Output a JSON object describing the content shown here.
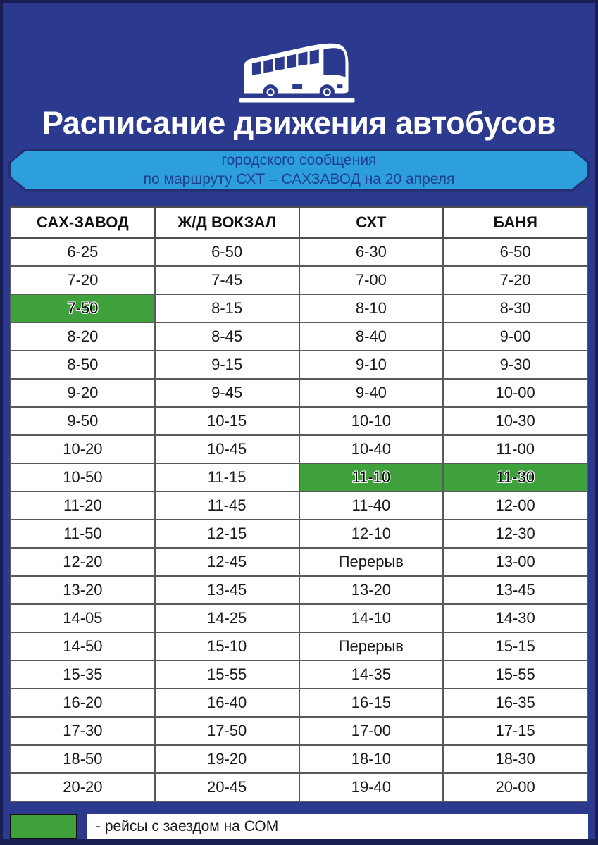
{
  "page": {
    "title": "Расписание движения автобусов",
    "subtitle_line1": "городского сообщения",
    "subtitle_line2": "по маршруту СХТ – САХЗАВОД на 20 апреля"
  },
  "colors": {
    "frame": "#191f55",
    "background": "#2b3a8e",
    "banner": "#2c9fdc",
    "banner_outline": "#23306f",
    "banner_text": "#1d3f8e",
    "highlight_green": "#3ea13c"
  },
  "icons": {
    "bus": "bus-icon"
  },
  "table": {
    "columns": [
      "САХ-ЗАВОД",
      "Ж/Д ВОКЗАЛ",
      "СХТ",
      "БАНЯ"
    ],
    "rows": [
      {
        "cells": [
          "6-25",
          "6-50",
          "6-30",
          "6-50"
        ],
        "highlight": []
      },
      {
        "cells": [
          "7-20",
          "7-45",
          "7-00",
          "7-20"
        ],
        "highlight": []
      },
      {
        "cells": [
          "7-50",
          "8-15",
          "8-10",
          "8-30"
        ],
        "highlight": [
          0
        ]
      },
      {
        "cells": [
          "8-20",
          "8-45",
          "8-40",
          "9-00"
        ],
        "highlight": []
      },
      {
        "cells": [
          "8-50",
          "9-15",
          "9-10",
          "9-30"
        ],
        "highlight": []
      },
      {
        "cells": [
          "9-20",
          "9-45",
          "9-40",
          "10-00"
        ],
        "highlight": []
      },
      {
        "cells": [
          "9-50",
          "10-15",
          "10-10",
          "10-30"
        ],
        "highlight": []
      },
      {
        "cells": [
          "10-20",
          "10-45",
          "10-40",
          "11-00"
        ],
        "highlight": []
      },
      {
        "cells": [
          "10-50",
          "11-15",
          "11-10",
          "11-30"
        ],
        "highlight": [
          2,
          3
        ]
      },
      {
        "cells": [
          "11-20",
          "11-45",
          "11-40",
          "12-00"
        ],
        "highlight": []
      },
      {
        "cells": [
          "11-50",
          "12-15",
          "12-10",
          "12-30"
        ],
        "highlight": []
      },
      {
        "cells": [
          "12-20",
          "12-45",
          "Перерыв",
          "13-00"
        ],
        "highlight": []
      },
      {
        "cells": [
          "13-20",
          "13-45",
          "13-20",
          "13-45"
        ],
        "highlight": []
      },
      {
        "cells": [
          "14-05",
          "14-25",
          "14-10",
          "14-30"
        ],
        "highlight": []
      },
      {
        "cells": [
          "14-50",
          "15-10",
          "Перерыв",
          "15-15"
        ],
        "highlight": []
      },
      {
        "cells": [
          "15-35",
          "15-55",
          "14-35",
          "15-55"
        ],
        "highlight": []
      },
      {
        "cells": [
          "16-20",
          "16-40",
          "16-15",
          "16-35"
        ],
        "highlight": []
      },
      {
        "cells": [
          "17-30",
          "17-50",
          "17-00",
          "17-15"
        ],
        "highlight": []
      },
      {
        "cells": [
          "18-50",
          "19-20",
          "18-10",
          "18-30"
        ],
        "highlight": []
      },
      {
        "cells": [
          "20-20",
          "20-45",
          "19-40",
          "20-00"
        ],
        "highlight": []
      }
    ]
  },
  "legend": {
    "label": "- рейсы с заездом на СОМ"
  }
}
